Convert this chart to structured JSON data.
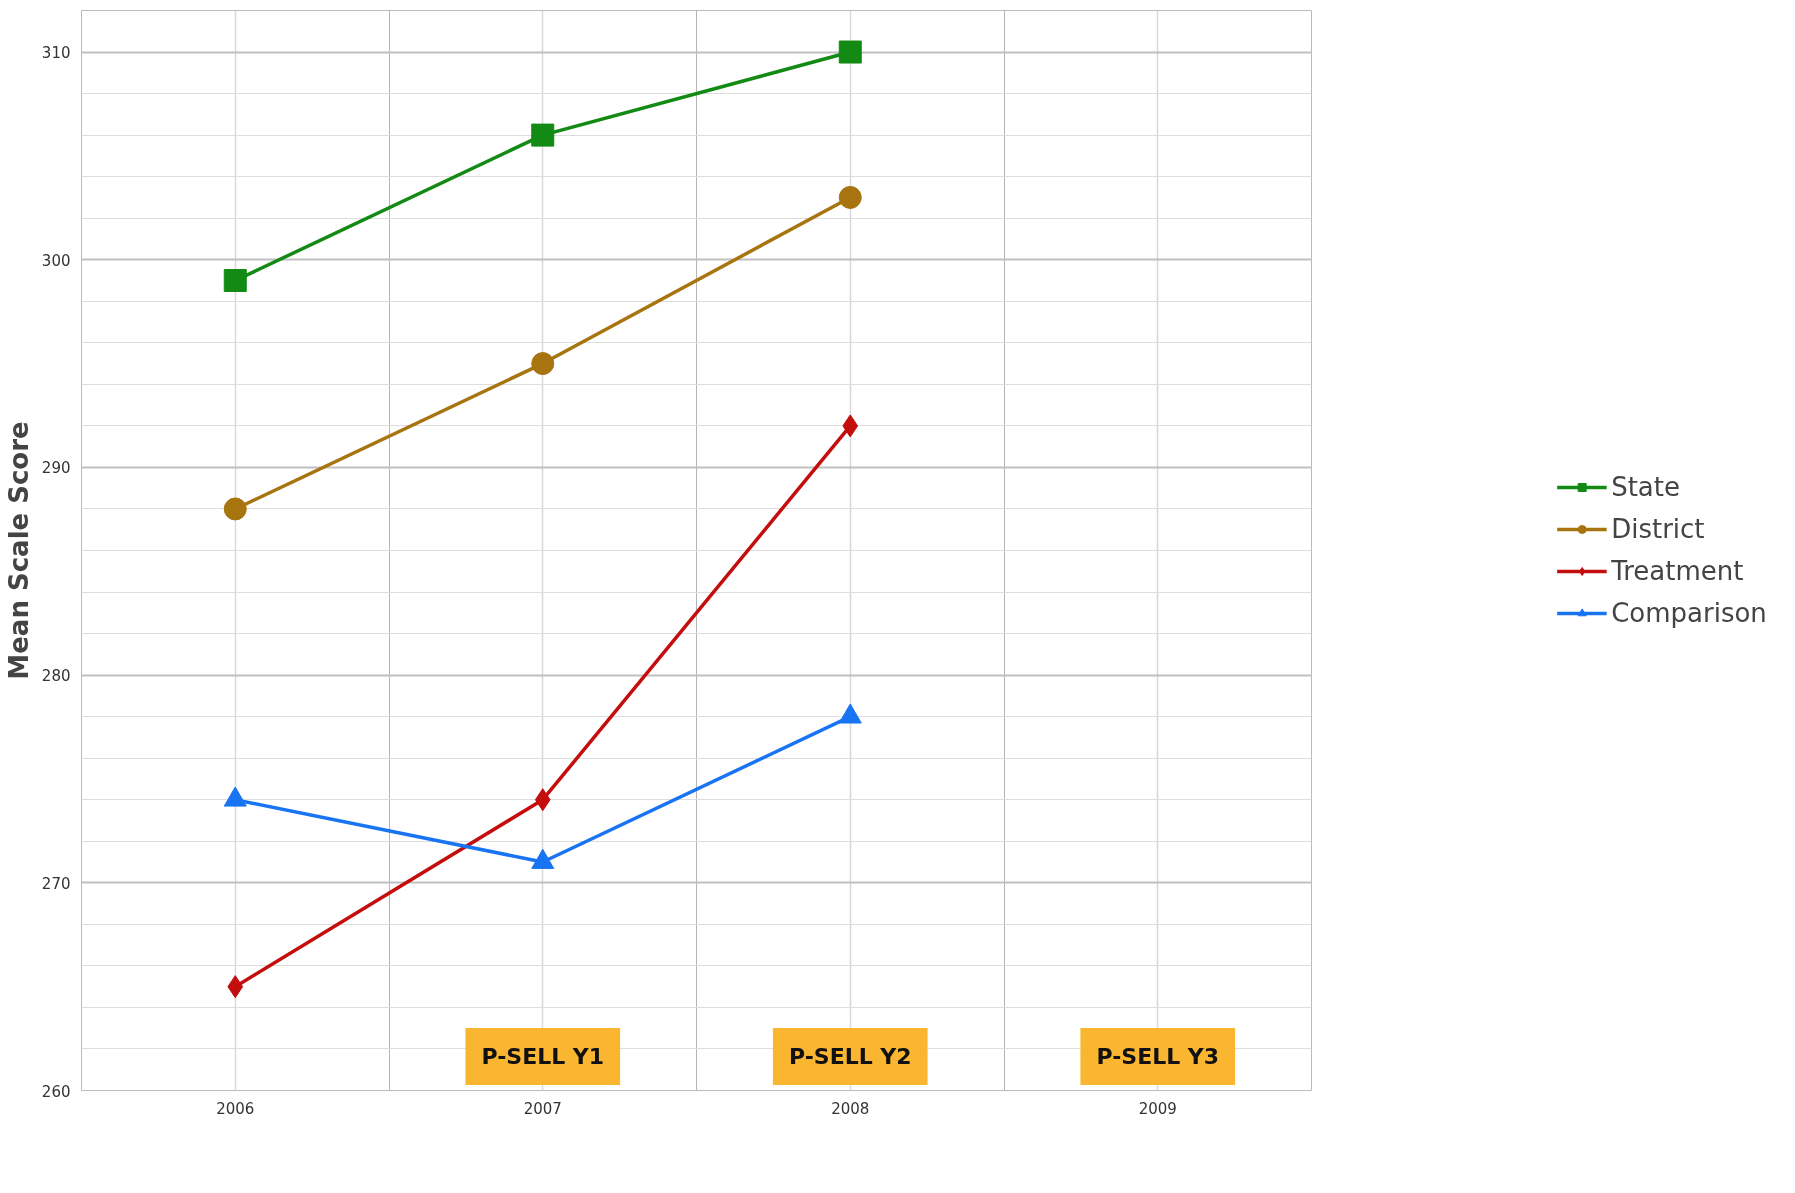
{
  "chart_data": {
    "type": "line",
    "ylabel": "Mean Scale Score",
    "categories": [
      "2006",
      "2007",
      "2008",
      "2009"
    ],
    "series": [
      {
        "name": "State",
        "color": "#138a13",
        "marker": "square",
        "values": [
          299,
          306,
          310,
          null
        ]
      },
      {
        "name": "District",
        "color": "#a8740f",
        "marker": "circle",
        "values": [
          288,
          295,
          303,
          null
        ]
      },
      {
        "name": "Treatment",
        "color": "#c40d0d",
        "marker": "diamond",
        "values": [
          265,
          274,
          292,
          null
        ]
      },
      {
        "name": "Comparison",
        "color": "#1874f2",
        "marker": "triangle",
        "values": [
          274,
          271,
          278,
          null
        ]
      }
    ],
    "ylim": [
      260,
      312
    ],
    "yticks": [
      260,
      270,
      280,
      290,
      300,
      310
    ],
    "annotations": [
      "P-SELL Y1",
      "P-SELL Y2",
      "P-SELL Y3"
    ],
    "grid": true,
    "legend": "right",
    "line_style": "solid"
  }
}
